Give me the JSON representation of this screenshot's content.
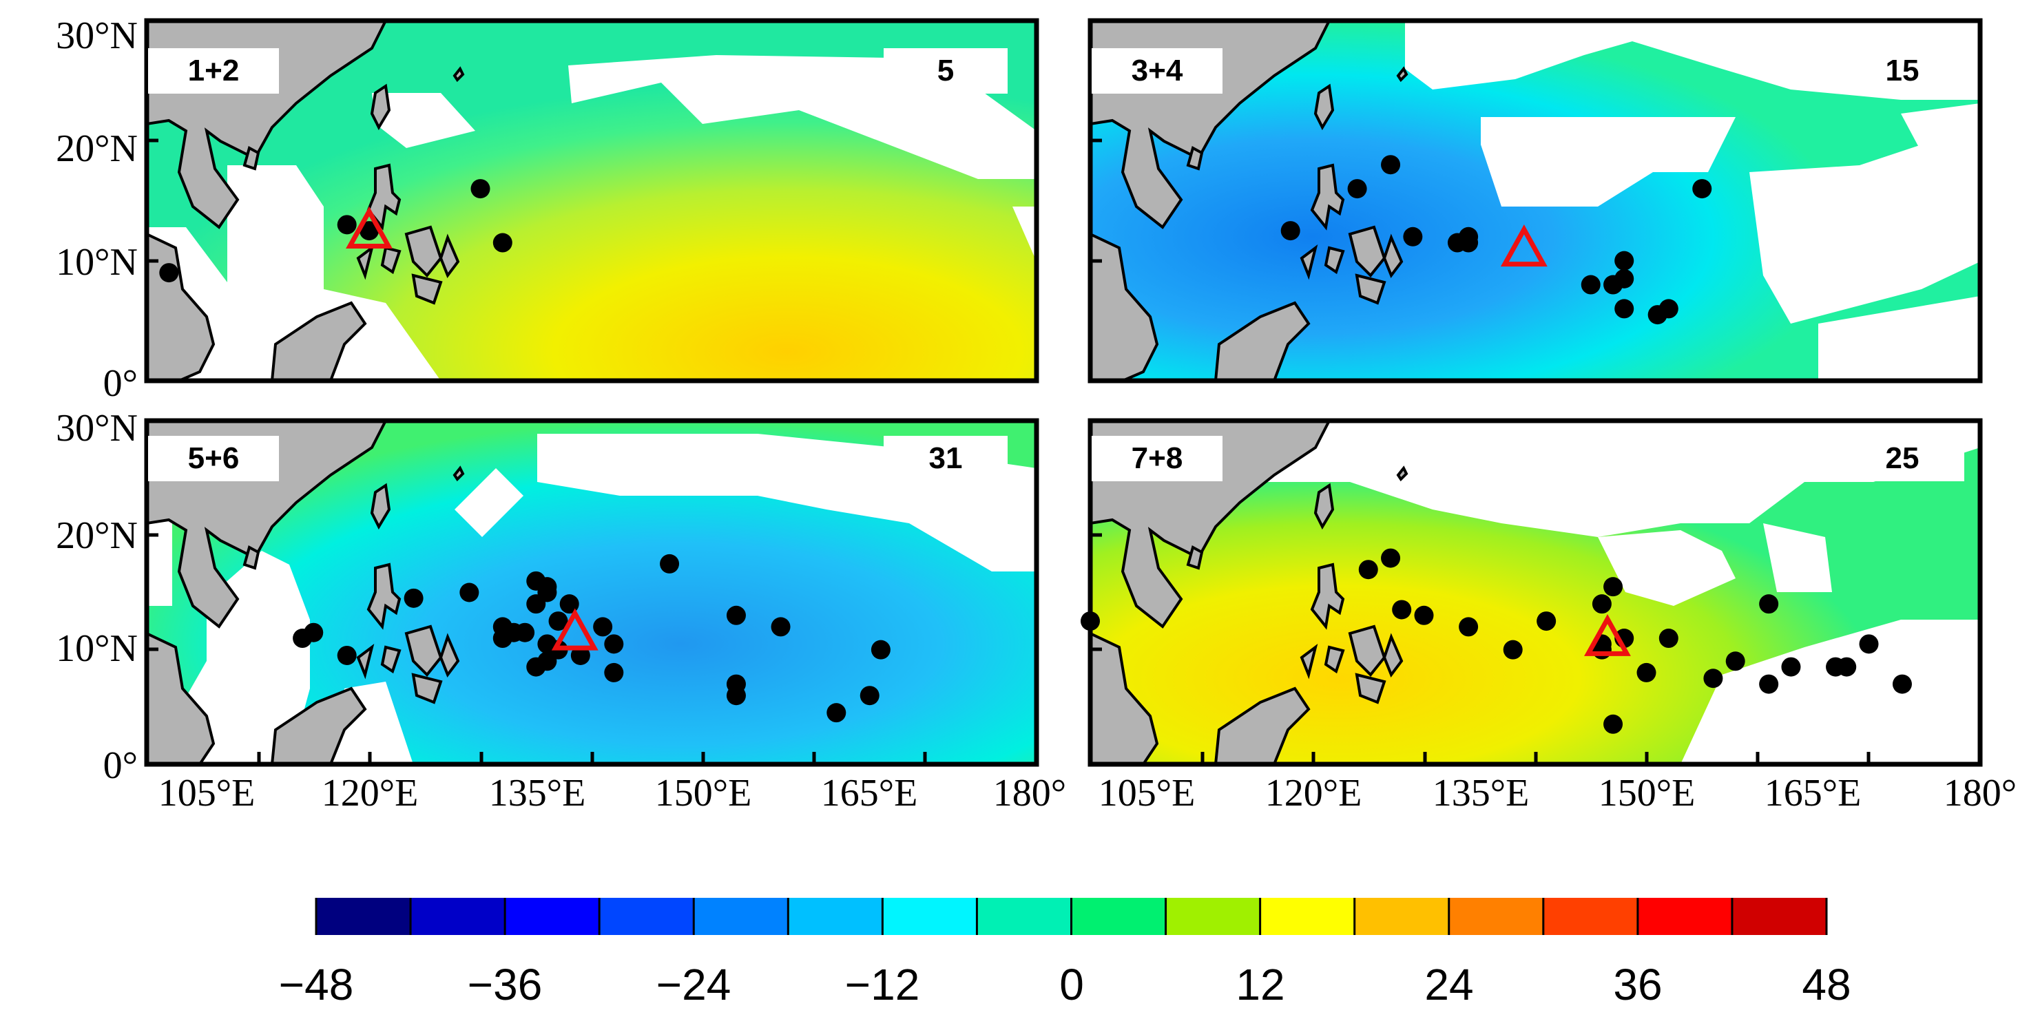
{
  "axes": {
    "lat_ticks": [
      "30°N",
      "20°N",
      "10°N",
      "0°"
    ],
    "lon_ticks": [
      "105°E",
      "120°E",
      "135°E",
      "150°E",
      "165°E",
      "180°"
    ]
  },
  "panels": [
    {
      "label": "1+2",
      "count": "5",
      "pattern": "positive",
      "triangle": {
        "lon": 120,
        "lat": 12.5
      },
      "points": [
        [
          102,
          9
        ],
        [
          118,
          13
        ],
        [
          120,
          12.5
        ],
        [
          130,
          16
        ],
        [
          132,
          11.5
        ]
      ]
    },
    {
      "label": "3+4",
      "count": "15",
      "pattern": "negative",
      "triangle": {
        "lon": 139,
        "lat": 11
      },
      "points": [
        [
          118,
          12.5
        ],
        [
          124,
          16
        ],
        [
          127,
          18
        ],
        [
          129,
          12
        ],
        [
          133,
          11.5
        ],
        [
          134,
          12
        ],
        [
          134,
          11.5
        ],
        [
          145,
          8
        ],
        [
          147,
          8
        ],
        [
          148,
          10
        ],
        [
          148,
          8.5
        ],
        [
          148,
          6
        ],
        [
          151,
          5.5
        ],
        [
          152,
          6
        ],
        [
          155,
          16
        ]
      ]
    },
    {
      "label": "5+6",
      "count": "31",
      "pattern": "negative-strong",
      "triangle": {
        "lon": 138.5,
        "lat": 11.5
      },
      "points": [
        [
          114,
          11
        ],
        [
          115,
          11.5
        ],
        [
          118,
          9.5
        ],
        [
          124,
          14.5
        ],
        [
          129,
          15
        ],
        [
          132,
          12
        ],
        [
          132,
          11
        ],
        [
          133,
          11.5
        ],
        [
          134,
          11.5
        ],
        [
          135,
          14
        ],
        [
          135,
          16
        ],
        [
          136,
          15.5
        ],
        [
          136,
          15
        ],
        [
          136,
          10.5
        ],
        [
          137,
          12.5
        ],
        [
          135,
          8.5
        ],
        [
          136,
          9
        ],
        [
          138,
          14
        ],
        [
          139,
          9.5
        ],
        [
          141,
          12
        ],
        [
          142,
          10.5
        ],
        [
          142,
          8
        ],
        [
          147,
          17.5
        ],
        [
          153,
          13
        ],
        [
          153,
          7
        ],
        [
          153,
          6
        ],
        [
          157,
          12
        ],
        [
          162,
          4.5
        ],
        [
          165,
          6
        ],
        [
          166,
          10
        ],
        [
          137,
          10
        ]
      ]
    },
    {
      "label": "7+8",
      "count": "25",
      "pattern": "positive-west",
      "triangle": {
        "lon": 146.5,
        "lat": 11
      },
      "points": [
        [
          100,
          12.5
        ],
        [
          125,
          17
        ],
        [
          127,
          18
        ],
        [
          128,
          13.5
        ],
        [
          130,
          13
        ],
        [
          134,
          12
        ],
        [
          138,
          10
        ],
        [
          141,
          12.5
        ],
        [
          146,
          14
        ],
        [
          147,
          15.5
        ],
        [
          146,
          10
        ],
        [
          147,
          3.5
        ],
        [
          148,
          11
        ],
        [
          150,
          8
        ],
        [
          152,
          11
        ],
        [
          156,
          7.5
        ],
        [
          158,
          9
        ],
        [
          161,
          14
        ],
        [
          161,
          7
        ],
        [
          163,
          8.5
        ],
        [
          167,
          8.5
        ],
        [
          168,
          8.5
        ],
        [
          170,
          10.5
        ],
        [
          173,
          7
        ],
        [
          146,
          10.5
        ]
      ]
    }
  ],
  "colorbar": {
    "ticks": [
      "−48",
      "−36",
      "−24",
      "−12",
      "0",
      "12",
      "24",
      "36",
      "48"
    ],
    "colors": [
      "#00007f",
      "#0000c8",
      "#0000ff",
      "#0046ff",
      "#0082ff",
      "#00c0ff",
      "#00f5ff",
      "#00f0b4",
      "#00f070",
      "#a0f000",
      "#ffff00",
      "#ffc000",
      "#ff8000",
      "#ff4000",
      "#ff0000",
      "#d00000"
    ]
  }
}
